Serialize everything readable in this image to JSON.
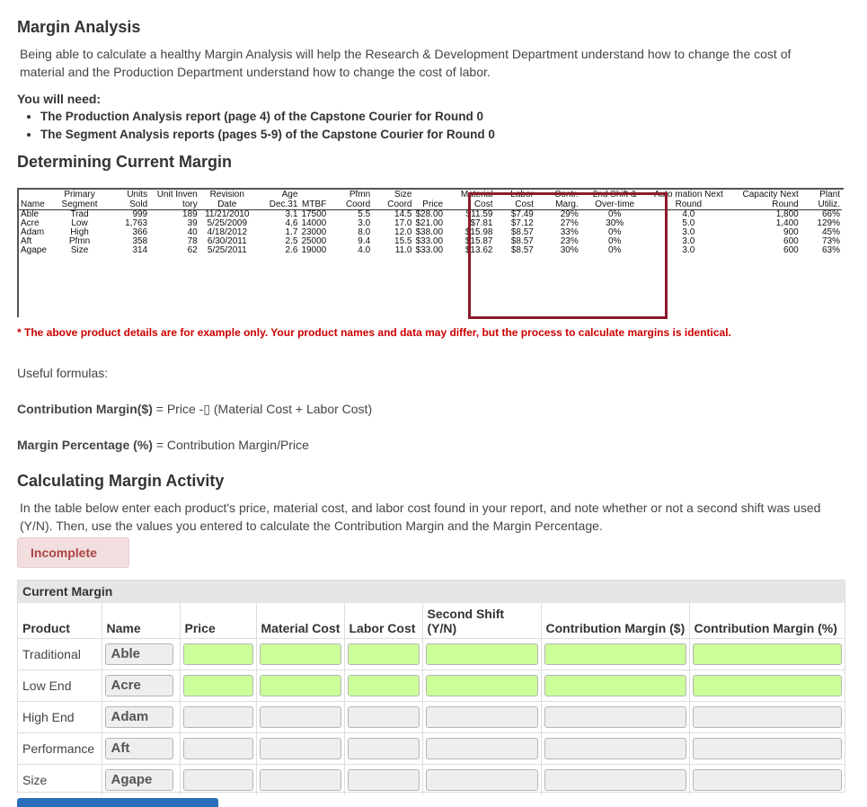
{
  "heading1": "Margin Analysis",
  "intro": "Being able to calculate a healthy Margin Analysis will help the Research & Development Department understand how to change the cost of material and the Production Department understand how to change the cost of labor.",
  "need_label": "You will need:",
  "need_items": [
    "The Production Analysis report (page 4) of the Capstone Courier for Round 0",
    "The Segment Analysis reports (pages 5-9) of the Capstone Courier for Round 0"
  ],
  "heading2": "Determining Current Margin",
  "report": {
    "headers": [
      "Name",
      "Primary Segment",
      "Units Sold",
      "Unit Inven tory",
      "Revision Date",
      "Age Dec.31",
      "MTBF",
      "Pfmn Coord",
      "Size Coord",
      "Price",
      "Material Cost",
      "Labor Cost",
      "Contr. Marg.",
      "2nd Shift & Over-time",
      "Auto mation Next Round",
      "Capacity Next Round",
      "Plant Utiliz."
    ],
    "rows": [
      [
        "Able",
        "Trad",
        "999",
        "189",
        "11/21/2010",
        "3.1",
        "17500",
        "5.5",
        "14.5",
        "$28.00",
        "$11.59",
        "$7.49",
        "29%",
        "0%",
        "4.0",
        "1,800",
        "66%"
      ],
      [
        "Acre",
        "Low",
        "1,763",
        "39",
        "5/25/2009",
        "4.6",
        "14000",
        "3.0",
        "17.0",
        "$21.00",
        "$7.81",
        "$7.12",
        "27%",
        "30%",
        "5.0",
        "1,400",
        "129%"
      ],
      [
        "Adam",
        "High",
        "366",
        "40",
        "4/18/2012",
        "1.7",
        "23000",
        "8.0",
        "12.0",
        "$38.00",
        "$15.98",
        "$8.57",
        "33%",
        "0%",
        "3.0",
        "900",
        "45%"
      ],
      [
        "Aft",
        "Pfmn",
        "358",
        "78",
        "6/30/2011",
        "2.5",
        "25000",
        "9.4",
        "15.5",
        "$33.00",
        "$15.87",
        "$8.57",
        "23%",
        "0%",
        "3.0",
        "600",
        "73%"
      ],
      [
        "Agape",
        "Size",
        "314",
        "62",
        "5/25/2011",
        "2.6",
        "19000",
        "4.0",
        "11.0",
        "$33.00",
        "$13.62",
        "$8.57",
        "30%",
        "0%",
        "3.0",
        "600",
        "63%"
      ]
    ]
  },
  "note": "* The above product details are for example only. Your product names and data may differ, but the process to calculate margins is identical.",
  "useful": "Useful formulas:",
  "formula1_label": "Contribution Margin($)",
  "formula1_text": " = Price -▯ (Material Cost + Labor Cost)",
  "formula2_label": "Margin Percentage (%)",
  "formula2_text": " = Contribution Margin/Price",
  "heading3": "Calculating Margin Activity",
  "instructions": "In the table below enter each product's price, material cost, and labor cost found in your report, and note whether or not a second shift was used (Y/N). Then, use the values you entered to calculate the Contribution Margin and the Margin Percentage.",
  "status": "Incomplete",
  "activity": {
    "title": "Current Margin",
    "columns": [
      "Product",
      "Name",
      "Price",
      "Material Cost",
      "Labor Cost",
      "Second Shift (Y/N)",
      "Contribution Margin ($)",
      "Contribution Margin (%)"
    ],
    "rows": [
      {
        "product": "Traditional",
        "name": "Able"
      },
      {
        "product": "Low End",
        "name": "Acre"
      },
      {
        "product": "High End",
        "name": "Adam"
      },
      {
        "product": "Performance",
        "name": "Aft"
      },
      {
        "product": "Size",
        "name": "Agape"
      }
    ]
  },
  "colors": {
    "input_active": "#ccff99",
    "input_inactive": "#eeeeee",
    "highlight": "#8b1a2b",
    "note": "#cc0000"
  }
}
